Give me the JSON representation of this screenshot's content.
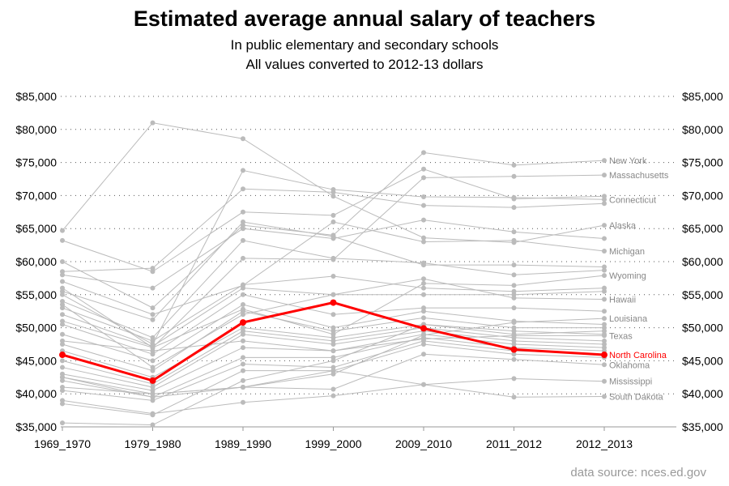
{
  "chart_data": {
    "type": "line",
    "title": "Estimated average annual salary of teachers",
    "subtitle": [
      "In public elementary and secondary schools",
      "All values converted to 2012-13 dollars"
    ],
    "source": "data source: nces.ed.gov",
    "categories": [
      "1969_1970",
      "1979_1980",
      "1989_1990",
      "1999_2000",
      "2009_2010",
      "2011_2012",
      "2012_2013"
    ],
    "ylim": [
      35000,
      85000
    ],
    "yticks": [
      "$35,000",
      "$40,000",
      "$45,000",
      "$50,000",
      "$55,000",
      "$60,000",
      "$65,000",
      "$70,000",
      "$75,000",
      "$80,000",
      "$85,000"
    ],
    "grid": "horizontal dotted",
    "highlight_color": "#ff0000",
    "series_color": "#bbbbbb",
    "series": [
      {
        "name": "New York",
        "values": [
          60000,
          53000,
          65500,
          64000,
          76500,
          74600,
          75300
        ]
      },
      {
        "name": "Massachusetts",
        "values": [
          56000,
          47000,
          60500,
          60300,
          72700,
          72900,
          73100
        ]
      },
      {
        "name": "Connecticut",
        "values": [
          55000,
          47500,
          73800,
          70900,
          69800,
          69700,
          69400
        ]
      },
      {
        "name": "Alaska",
        "values": [
          64700,
          81000,
          78600,
          69900,
          63600,
          62900,
          65500
        ]
      },
      {
        "name": "Michigan",
        "values": [
          57000,
          52000,
          56400,
          66000,
          63000,
          63200,
          61600
        ]
      },
      {
        "name": "Wyoming",
        "values": [
          51000,
          47000,
          52800,
          49000,
          56700,
          56400,
          57900
        ]
      },
      {
        "name": "Hawaii",
        "values": [
          53500,
          44000,
          52000,
          55000,
          57400,
          54500,
          54300
        ]
      },
      {
        "name": "Louisiana",
        "values": [
          42000,
          39500,
          41000,
          43000,
          48900,
          50800,
          51400
        ]
      },
      {
        "name": "Texas",
        "values": [
          48000,
          46500,
          48000,
          46500,
          48300,
          48800,
          48800
        ]
      },
      {
        "name": "North Carolina",
        "values": [
          45900,
          42000,
          50800,
          53800,
          49900,
          46700,
          45900
        ],
        "highlight": true
      },
      {
        "name": "Oklahoma",
        "values": [
          42500,
          40000,
          41000,
          40700,
          46000,
          45200,
          44400
        ]
      },
      {
        "name": "Mississippi",
        "values": [
          39000,
          37000,
          38700,
          39700,
          41400,
          42300,
          41900
        ]
      },
      {
        "name": "South Dakota",
        "values": [
          41000,
          40000,
          41000,
          43500,
          41400,
          39500,
          39600
        ]
      },
      {
        "name": "",
        "values": [
          63200,
          58500,
          67500,
          67000,
          74000,
          69500,
          69900
        ]
      },
      {
        "name": "",
        "values": [
          58500,
          59000,
          71000,
          70500,
          68500,
          68200,
          68800
        ]
      },
      {
        "name": "",
        "values": [
          58000,
          56000,
          65000,
          63500,
          66300,
          64500,
          63500
        ]
      },
      {
        "name": "",
        "values": [
          55500,
          51200,
          66000,
          63800,
          59500,
          59500,
          59200
        ]
      },
      {
        "name": "",
        "values": [
          54000,
          48500,
          63200,
          60500,
          59800,
          58000,
          58700
        ]
      },
      {
        "name": "",
        "values": [
          53000,
          48000,
          56500,
          57800,
          56000,
          55500,
          56000
        ]
      },
      {
        "name": "",
        "values": [
          52000,
          47200,
          56000,
          55000,
          55000,
          55000,
          55500
        ]
      },
      {
        "name": "",
        "values": [
          50500,
          46000,
          55000,
          52000,
          53000,
          53000,
          52500
        ]
      },
      {
        "name": "",
        "values": [
          49000,
          45000,
          53500,
          50000,
          52500,
          51000,
          50500
        ]
      },
      {
        "name": "",
        "values": [
          47500,
          43500,
          52500,
          49500,
          51500,
          50000,
          50000
        ]
      },
      {
        "name": "",
        "values": [
          46500,
          42500,
          50000,
          48500,
          50500,
          49000,
          49500
        ]
      },
      {
        "name": "",
        "values": [
          45000,
          41500,
          49500,
          48000,
          50000,
          48500,
          48000
        ]
      },
      {
        "name": "",
        "values": [
          44000,
          41000,
          49000,
          47500,
          49500,
          48000,
          47500
        ]
      },
      {
        "name": "",
        "values": [
          43000,
          40500,
          47000,
          46500,
          49000,
          47500,
          47000
        ]
      },
      {
        "name": "",
        "values": [
          42500,
          39500,
          45500,
          45500,
          48500,
          47000,
          46500
        ]
      },
      {
        "name": "",
        "values": [
          40500,
          39000,
          44500,
          44000,
          48000,
          46500,
          46000
        ]
      },
      {
        "name": "",
        "values": [
          38500,
          36800,
          43500,
          43500,
          47500,
          46000,
          45500
        ]
      },
      {
        "name": "",
        "values": [
          35600,
          35300,
          42000,
          45000,
          50500,
          49500,
          49000
        ]
      }
    ]
  }
}
